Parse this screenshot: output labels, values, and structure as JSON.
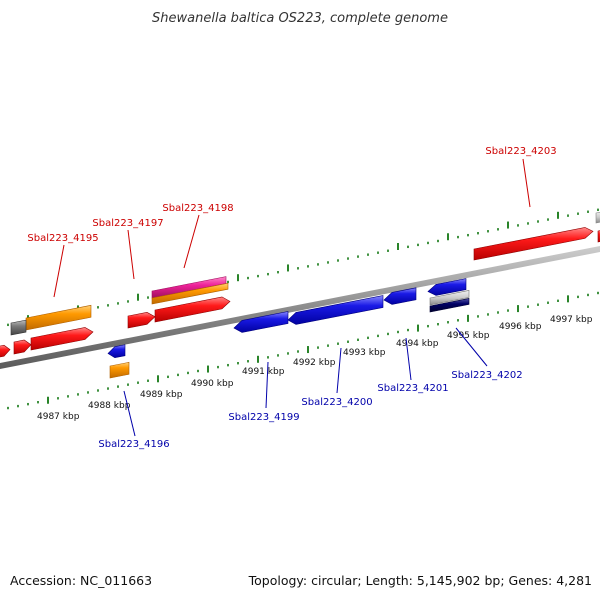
{
  "title": "Shewanella baltica OS223, complete genome",
  "footer": {
    "accession": "Accession: NC_011663",
    "summary": "Topology: circular; Length: 5,145,902 bp; Genes: 4,281"
  },
  "colors": {
    "red": "#ee1111",
    "blue": "#1a1ae6",
    "orange": "#ff9900",
    "pink": "#ee2299",
    "gray": "#888888",
    "navy": "#000066",
    "silver": "#cccccc",
    "tick_green": "#117711",
    "label_red": "#cc0000",
    "label_blue": "#0000aa",
    "backbone": "#999999"
  },
  "tick_labels": [
    "4987 kbp",
    "4988 kbp",
    "4989 kbp",
    "4990 kbp",
    "4991 kbp",
    "4992 kbp",
    "4993 kbp",
    "4994 kbp",
    "4995 kbp",
    "4996 kbp",
    "4997 kbp"
  ],
  "gene_labels": [
    {
      "id": "4195",
      "text": "Sbal223_4195",
      "strand": "forward"
    },
    {
      "id": "4196",
      "text": "Sbal223_4196",
      "strand": "reverse"
    },
    {
      "id": "4197",
      "text": "Sbal223_4197",
      "strand": "forward"
    },
    {
      "id": "4198",
      "text": "Sbal223_4198",
      "strand": "forward"
    },
    {
      "id": "4199",
      "text": "Sbal223_4199",
      "strand": "reverse"
    },
    {
      "id": "4200",
      "text": "Sbal223_4200",
      "strand": "reverse"
    },
    {
      "id": "4201",
      "text": "Sbal223_4201",
      "strand": "reverse"
    },
    {
      "id": "4202",
      "text": "Sbal223_4202",
      "strand": "reverse"
    },
    {
      "id": "4203",
      "text": "Sbal223_4203",
      "strand": "forward"
    }
  ]
}
